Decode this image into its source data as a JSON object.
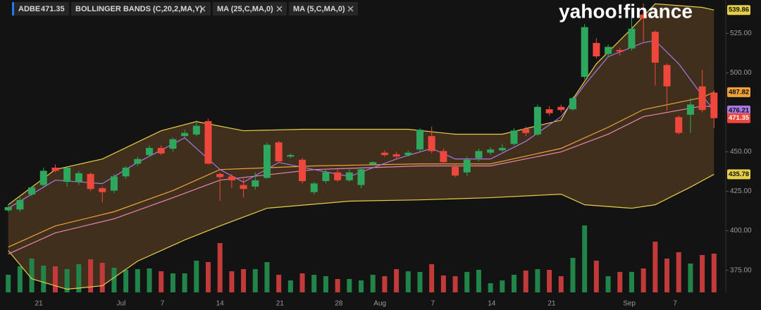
{
  "header": {
    "symbol": "ADBE",
    "indicators": [
      "BOLLINGER BANDS (C,20,2,MA,Y)",
      "MA (25,C,MA,0)",
      "MA (5,C,MA,0)"
    ]
  },
  "chart_data": {
    "type": "candlestick",
    "watermark": "yahoo!finance",
    "up_color": "#2ea85e",
    "down_color": "#f0473d",
    "volume_up_color": "#21854a",
    "volume_down_color": "#c23a3a",
    "open": [
      413.0,
      413.5,
      423,
      429,
      440,
      431,
      431,
      436,
      427,
      425.5,
      434.5,
      442.5,
      448,
      452.5,
      452,
      460,
      461,
      469.5,
      436,
      434.5,
      429,
      428,
      433.5,
      456,
      447,
      445,
      424.5,
      431.5,
      437,
      432,
      429,
      442,
      449.5,
      448.5,
      448,
      451.5,
      460,
      450.5,
      440.5,
      437,
      446,
      449.5,
      451,
      455,
      464.5,
      461,
      477,
      478.5,
      477,
      497.5,
      519,
      512,
      514.5,
      515.5,
      537,
      526,
      505,
      472,
      473.5,
      491.5,
      487.5
    ],
    "high": [
      416,
      421,
      428,
      440,
      442,
      441,
      438,
      437,
      428,
      436,
      441,
      447,
      454,
      454,
      459,
      464,
      470,
      471,
      437,
      436,
      433,
      437,
      456,
      457,
      449,
      446,
      431,
      439,
      439,
      439,
      440,
      444,
      451,
      450,
      451,
      465,
      466,
      452,
      442,
      447,
      452,
      453,
      455,
      465,
      466,
      480,
      479,
      480,
      485,
      531,
      522,
      518,
      516,
      535,
      544,
      527,
      506,
      473,
      484,
      502,
      489
    ],
    "low": [
      412,
      412,
      422,
      428,
      437,
      428,
      429,
      425,
      418,
      424,
      433,
      441,
      447,
      448,
      450,
      459,
      460,
      442,
      419,
      427,
      421,
      426,
      433,
      443,
      446,
      430,
      423,
      430,
      431,
      431,
      427,
      441,
      447,
      445,
      447,
      450,
      449,
      442,
      434,
      435,
      444,
      448,
      450,
      454,
      460,
      460,
      473,
      475,
      476,
      496,
      509,
      510,
      511,
      514,
      520,
      492,
      476,
      461,
      462,
      475,
      465
    ],
    "close": [
      415.0,
      419.5,
      427.5,
      438,
      438,
      440,
      436.5,
      426.5,
      424.5,
      434.5,
      440,
      445.5,
      452.5,
      449,
      458,
      462,
      466.5,
      442.5,
      434,
      432,
      426.5,
      432,
      454.5,
      444,
      448,
      431.5,
      430,
      437,
      432,
      437,
      439,
      443.5,
      448,
      447,
      449.5,
      464,
      450.5,
      443.5,
      435,
      445,
      450.5,
      451.5,
      452.5,
      463.5,
      462,
      478.5,
      474.5,
      476.5,
      484,
      529,
      510.5,
      516.5,
      513.5,
      528,
      534.5,
      506.5,
      491.5,
      462,
      480,
      476.5,
      471.35
    ],
    "volume": [
      25,
      37,
      48,
      38,
      37,
      33,
      40,
      47,
      42,
      35,
      32,
      33,
      34,
      30,
      27,
      27,
      45,
      43,
      70,
      30,
      33,
      33,
      43,
      25,
      17,
      27,
      25,
      23,
      19,
      19,
      17,
      25,
      23,
      33,
      30,
      29,
      40,
      24,
      23,
      29,
      32,
      13,
      17,
      25,
      31,
      33,
      32,
      23,
      49,
      95,
      45,
      23,
      29,
      29,
      34,
      72,
      48,
      57,
      41,
      53,
      55
    ],
    "lines": [
      {
        "color": "#e6cf48",
        "x": [
          0,
          4,
          8,
          13,
          16,
          20,
          25,
          34,
          38,
          42,
          47,
          48,
          50,
          53,
          55,
          59,
          60
        ],
        "values": [
          416.5,
          438.8,
          445.5,
          463.4,
          469.2,
          463.4,
          464.3,
          464.3,
          461.2,
          461.2,
          470.1,
          483.5,
          505.8,
          528.1,
          543.8,
          541.5,
          539.86
        ]
      },
      {
        "color": "#e6cf48",
        "x": [
          0,
          2,
          5,
          8,
          11,
          15,
          18,
          22,
          29,
          35,
          41,
          47,
          49,
          53,
          55,
          58,
          60
        ],
        "values": [
          387.5,
          369.6,
          363,
          365.2,
          380.8,
          394.2,
          403.1,
          414.3,
          418.8,
          419.6,
          421,
          423.2,
          416.5,
          414.3,
          416.5,
          427.7,
          435.78
        ]
      },
      {
        "color": "#f0a23a",
        "x": [
          0,
          4,
          9,
          14,
          18,
          26,
          35,
          41,
          47,
          51,
          54,
          59,
          60
        ],
        "values": [
          389.7,
          403.1,
          412.1,
          425.5,
          438.8,
          441.1,
          442.4,
          442.4,
          452.2,
          465.6,
          476.8,
          484.4,
          487.82
        ]
      },
      {
        "color": "#e887b0",
        "x": [
          0,
          4,
          9,
          14,
          18,
          26,
          35,
          41,
          47,
          51,
          54,
          59,
          60
        ],
        "values": [
          385.3,
          398.7,
          407.6,
          421,
          432.1,
          438.8,
          441.1,
          441.1,
          450,
          461.2,
          472.3,
          479,
          478.6
        ]
      },
      {
        "color": "#a678e6",
        "x": [
          0,
          4,
          8,
          11,
          15,
          18,
          20,
          23,
          26,
          29,
          33,
          36,
          38,
          41,
          44,
          47,
          49,
          51,
          54,
          55,
          57,
          59,
          60
        ],
        "values": [
          414.3,
          432.1,
          429.9,
          443.3,
          458.9,
          438.8,
          430.8,
          443.3,
          438.8,
          434.4,
          445.5,
          452.2,
          445.5,
          445.5,
          456.7,
          472.3,
          492.4,
          510.3,
          519.2,
          520.5,
          505.8,
          485.7,
          476.21
        ]
      }
    ],
    "band_fill": "#4a3520",
    "last_labels": [
      0,
      1,
      2,
      4
    ],
    "xlim": [
      -0.7,
      61
    ],
    "ylim": [
      361,
      546.2
    ],
    "vlim": [
      0,
      100
    ],
    "yticks": [
      {
        "value": 525,
        "label": "525.00"
      },
      {
        "value": 500,
        "label": "500.00"
      },
      {
        "value": 450,
        "label": "450.00"
      },
      {
        "value": 425,
        "label": "425.00"
      },
      {
        "value": 400,
        "label": "400.00"
      },
      {
        "value": 375,
        "label": "375.00"
      }
    ],
    "xticks": [
      {
        "value": 2.6,
        "label": "21"
      },
      {
        "value": 9.6,
        "label": "Jul"
      },
      {
        "value": 13.1,
        "label": "7"
      },
      {
        "value": 18,
        "label": "14"
      },
      {
        "value": 23.1,
        "label": "21"
      },
      {
        "value": 28.1,
        "label": "28"
      },
      {
        "value": 31.6,
        "label": "Aug"
      },
      {
        "value": 36.1,
        "label": "7"
      },
      {
        "value": 41.1,
        "label": "14"
      },
      {
        "value": 46.2,
        "label": "21"
      },
      {
        "value": 52.8,
        "label": "Sep"
      },
      {
        "value": 56.7,
        "label": "7"
      }
    ]
  }
}
